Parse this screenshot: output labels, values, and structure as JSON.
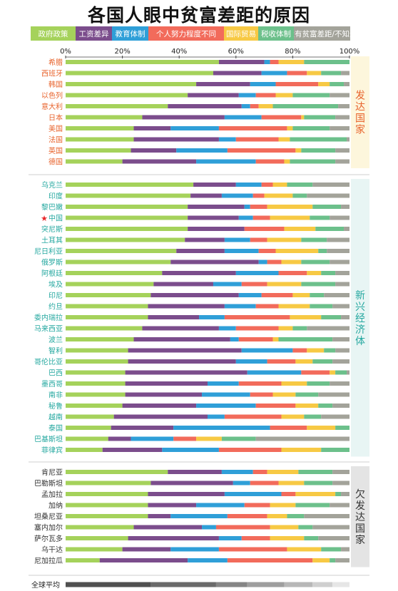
{
  "title": "各国人眼中贫富差距的原因",
  "colors": {
    "政府政策": "#a5d25b",
    "工资差异": "#7b4d8c",
    "教育体制": "#2f9fd8",
    "个人努力程度不同": "#f26b5b",
    "国际贸易": "#f7c944",
    "税收体制": "#6cc08b",
    "没有贫富差距/不知道": "#a3a39a",
    "global": [
      "#505050",
      "#6a6a6a",
      "#858585",
      "#9e9e9e",
      "#b7b7b7",
      "#cfcfcf",
      "#e6e6e6"
    ]
  },
  "chart_data": {
    "type": "bar",
    "stacked": true,
    "orientation": "horizontal",
    "title": "各国人眼中贫富差距的原因",
    "xlim": [
      0,
      100
    ],
    "x_ticks": [
      "0%",
      "20%",
      "40%",
      "60%",
      "80%",
      "100%"
    ],
    "legend": [
      "政府政策",
      "工资差异",
      "教育体制",
      "个人努力程度不同",
      "国际贸易",
      "税收体制",
      "没有贫富差距/不知道"
    ],
    "legend_position": "top",
    "groups": [
      {
        "name": "发达国家",
        "color": "#e8632c",
        "bg": "#fdf6dc",
        "rows": [
          {
            "country": "希腊",
            "values": [
              54,
              16,
              2,
              3,
              9,
              16,
              0
            ]
          },
          {
            "country": "西班牙",
            "values": [
              52,
              17,
              9,
              7,
              5,
              7,
              3
            ]
          },
          {
            "country": "韩国",
            "values": [
              46,
              19,
              9,
              15,
              4,
              5,
              2
            ]
          },
          {
            "country": "以色列",
            "values": [
              43,
              18,
              6,
              7,
              6,
              13,
              7
            ]
          },
          {
            "country": "意大利",
            "values": [
              36,
              26,
              3,
              3,
              5,
              23,
              4
            ]
          },
          {
            "country": "日本",
            "values": [
              27,
              29,
              13,
              14,
              1,
              11,
              5
            ]
          },
          {
            "country": "美国",
            "values": [
              24,
              13,
              17,
              24,
              2,
              13,
              7
            ]
          },
          {
            "country": "法国",
            "values": [
              24,
              30,
              6,
              15,
              4,
              20,
              1
            ]
          },
          {
            "country": "英国",
            "values": [
              23,
              16,
              18,
              24,
              2,
              12,
              5
            ]
          },
          {
            "country": "德国",
            "values": [
              20,
              26,
              21,
              10,
              2,
              16,
              5
            ]
          }
        ]
      },
      {
        "name": "新兴经济体",
        "color": "#25a8a0",
        "bg": "#e8f5f4",
        "rows": [
          {
            "country": "乌克兰",
            "values": [
              45,
              15,
              9,
              4,
              5,
              9,
              13
            ]
          },
          {
            "country": "印度",
            "values": [
              44,
              11,
              11,
              4,
              10,
              5,
              15
            ]
          },
          {
            "country": "黎巴嫩",
            "values": [
              43,
              20,
              2,
              6,
              16,
              10,
              3
            ]
          },
          {
            "country": "中国",
            "values": [
              43,
              18,
              5,
              6,
              14,
              7,
              7
            ]
          },
          {
            "country": "突尼斯",
            "values": [
              43,
              20,
              0,
              14,
              11,
              10,
              2
            ]
          },
          {
            "country": "土耳其",
            "values": [
              42,
              14,
              9,
              6,
              12,
              9,
              8
            ]
          },
          {
            "country": "尼日利亚",
            "values": [
              39,
              17,
              12,
              6,
              15,
              3,
              8
            ]
          },
          {
            "country": "俄罗斯",
            "values": [
              37,
              31,
              3,
              5,
              7,
              10,
              7
            ]
          },
          {
            "country": "阿根廷",
            "values": [
              34,
              26,
              15,
              10,
              5,
              5,
              5
            ]
          },
          {
            "country": "埃及",
            "values": [
              31,
              21,
              10,
              9,
              12,
              12,
              5
            ]
          },
          {
            "country": "印尼",
            "values": [
              30,
              31,
              8,
              11,
              6,
              5,
              9
            ]
          },
          {
            "country": "约旦",
            "values": [
              29,
              27,
              11,
              8,
              11,
              8,
              6
            ]
          },
          {
            "country": "委内瑞拉",
            "values": [
              29,
              18,
              9,
              23,
              11,
              7,
              3
            ]
          },
          {
            "country": "马来西亚",
            "values": [
              27,
              27,
              6,
              15,
              5,
              5,
              15
            ]
          },
          {
            "country": "波兰",
            "values": [
              24,
              34,
              3,
              12,
              2,
              19,
              6
            ]
          },
          {
            "country": "智利",
            "values": [
              22,
              40,
              18,
              5,
              6,
              4,
              5
            ]
          },
          {
            "country": "哥伦比亚",
            "values": [
              22,
              38,
              11,
              10,
              6,
              7,
              6
            ]
          },
          {
            "country": "巴西",
            "values": [
              21,
              43,
              19,
              10,
              2,
              4,
              1
            ]
          },
          {
            "country": "墨西哥",
            "values": [
              21,
              29,
              11,
              15,
              9,
              8,
              7
            ]
          },
          {
            "country": "南非",
            "values": [
              21,
              27,
              17,
              8,
              8,
              8,
              11
            ]
          },
          {
            "country": "秘鲁",
            "values": [
              20,
              26,
              21,
              14,
              8,
              5,
              6
            ]
          },
          {
            "country": "越南",
            "values": [
              17,
              33,
              6,
              20,
              8,
              6,
              10
            ]
          },
          {
            "country": "泰国",
            "values": [
              16,
              22,
              34,
              13,
              10,
              5,
              0
            ]
          },
          {
            "country": "巴基斯坦",
            "values": [
              15,
              8,
              15,
              8,
              9,
              12,
              33
            ]
          },
          {
            "country": "菲律宾",
            "values": [
              13,
              21,
              20,
              22,
              14,
              10,
              0
            ]
          }
        ]
      },
      {
        "name": "欠发达国家",
        "color": "#333333",
        "bg": "#e4e4e4",
        "rows": [
          {
            "country": "肯尼亚",
            "values": [
              36,
              19,
              11,
              5,
              11,
              12,
              6
            ]
          },
          {
            "country": "巴勒斯坦",
            "values": [
              30,
              29,
              6,
              10,
              9,
              10,
              6
            ]
          },
          {
            "country": "孟加拉",
            "values": [
              29,
              27,
              20,
              5,
              14,
              2,
              3
            ]
          },
          {
            "country": "加纳",
            "values": [
              29,
              17,
              17,
              9,
              9,
              12,
              7
            ]
          },
          {
            "country": "坦桑尼亚",
            "values": [
              29,
              8,
              20,
              14,
              7,
              6,
              16
            ]
          },
          {
            "country": "塞内加尔",
            "values": [
              24,
              24,
              5,
              19,
              10,
              5,
              13
            ]
          },
          {
            "country": "萨尔瓦多",
            "values": [
              22,
              32,
              8,
              10,
              12,
              5,
              11
            ]
          },
          {
            "country": "乌干达",
            "values": [
              20,
              17,
              17,
              24,
              12,
              7,
              3
            ]
          },
          {
            "country": "尼加拉瓜",
            "values": [
              12,
              31,
              14,
              30,
              6,
              2,
              5
            ]
          }
        ]
      }
    ],
    "global_average": {
      "label": "全球平均",
      "values": [
        30,
        23,
        11,
        13,
        10,
        7,
        6
      ]
    }
  }
}
